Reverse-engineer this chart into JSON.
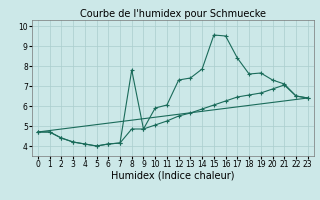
{
  "title": "Courbe de l'humidex pour Schmuecke",
  "xlabel": "Humidex (Indice chaleur)",
  "background_color": "#cce8e8",
  "grid_color": "#aacece",
  "line_color": "#1a6b5a",
  "xlim": [
    -0.5,
    23.5
  ],
  "ylim": [
    3.5,
    10.3
  ],
  "xticks": [
    0,
    1,
    2,
    3,
    4,
    5,
    6,
    7,
    8,
    9,
    10,
    11,
    12,
    13,
    14,
    15,
    16,
    17,
    18,
    19,
    20,
    21,
    22,
    23
  ],
  "yticks": [
    4,
    5,
    6,
    7,
    8,
    9,
    10
  ],
  "line1_x": [
    0,
    1,
    2,
    3,
    4,
    5,
    6,
    7,
    8,
    9,
    10,
    11,
    12,
    13,
    14,
    15,
    16,
    17,
    18,
    19,
    20,
    21,
    22,
    23
  ],
  "line1_y": [
    4.7,
    4.7,
    4.4,
    4.2,
    4.1,
    4.0,
    4.1,
    4.15,
    7.8,
    4.85,
    5.9,
    6.05,
    7.3,
    7.4,
    7.85,
    9.55,
    9.5,
    8.4,
    7.6,
    7.65,
    7.3,
    7.1,
    6.5,
    6.4
  ],
  "line2_x": [
    0,
    1,
    2,
    3,
    4,
    5,
    6,
    7,
    8,
    9,
    10,
    11,
    12,
    13,
    14,
    15,
    16,
    17,
    18,
    19,
    20,
    21,
    22,
    23
  ],
  "line2_y": [
    4.7,
    4.7,
    4.4,
    4.2,
    4.1,
    4.0,
    4.1,
    4.15,
    4.85,
    4.85,
    5.05,
    5.25,
    5.5,
    5.65,
    5.85,
    6.05,
    6.25,
    6.45,
    6.55,
    6.65,
    6.85,
    7.05,
    6.5,
    6.4
  ],
  "line3_x": [
    0,
    23
  ],
  "line3_y": [
    4.7,
    6.4
  ],
  "title_fontsize": 7,
  "tick_fontsize": 5.5,
  "xlabel_fontsize": 7
}
